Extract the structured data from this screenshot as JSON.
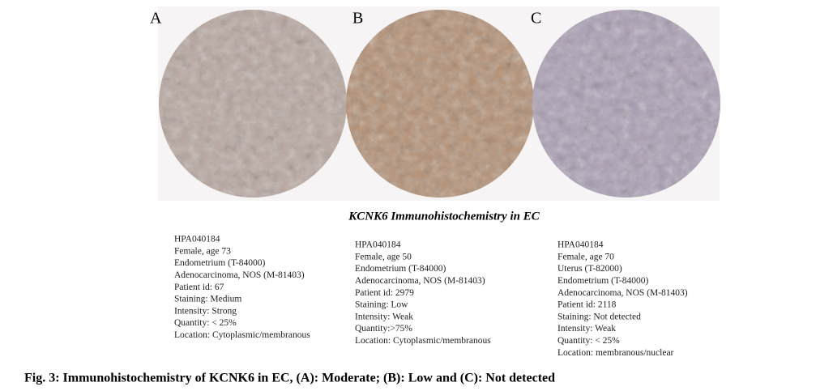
{
  "figure": {
    "panels": [
      {
        "label": "A",
        "lines": [
          "HPA040184",
          "Female, age 73",
          "Endometrium (T-84000)",
          "Adenocarcinoma, NOS (M-81403)",
          "Patient id: 67",
          "Staining: Medium",
          "Intensity: Strong",
          "Quantity: < 25%",
          "Location: Cytoplasmic/membranous"
        ]
      },
      {
        "label": "B",
        "lines": [
          "HPA040184",
          "Female, age 50",
          "Endometrium (T-84000)",
          "Adenocarcinoma, NOS (M-81403)",
          "Patient id: 2979",
          "Staining: Low",
          "Intensity: Weak",
          "Quantity:>75%",
          "Location: Cytoplasmic/membranous"
        ]
      },
      {
        "label": "C",
        "lines": [
          "HPA040184",
          "Female, age 70",
          "Uterus (T-82000)",
          "Endometrium (T-84000)",
          "Adenocarcinoma, NOS (M-81403)",
          "Patient id: 2118",
          "Staining: Not detected",
          "Intensity: Weak",
          "Quantity: < 25%",
          "Location: membranous/nuclear"
        ]
      }
    ],
    "title": "KCNK6 Immunohistochemistry in EC",
    "caption": "Fig. 3: Immunohistochemistry of KCNK6 in EC, (A): Moderate; (B): Low and (C): Not detected"
  }
}
